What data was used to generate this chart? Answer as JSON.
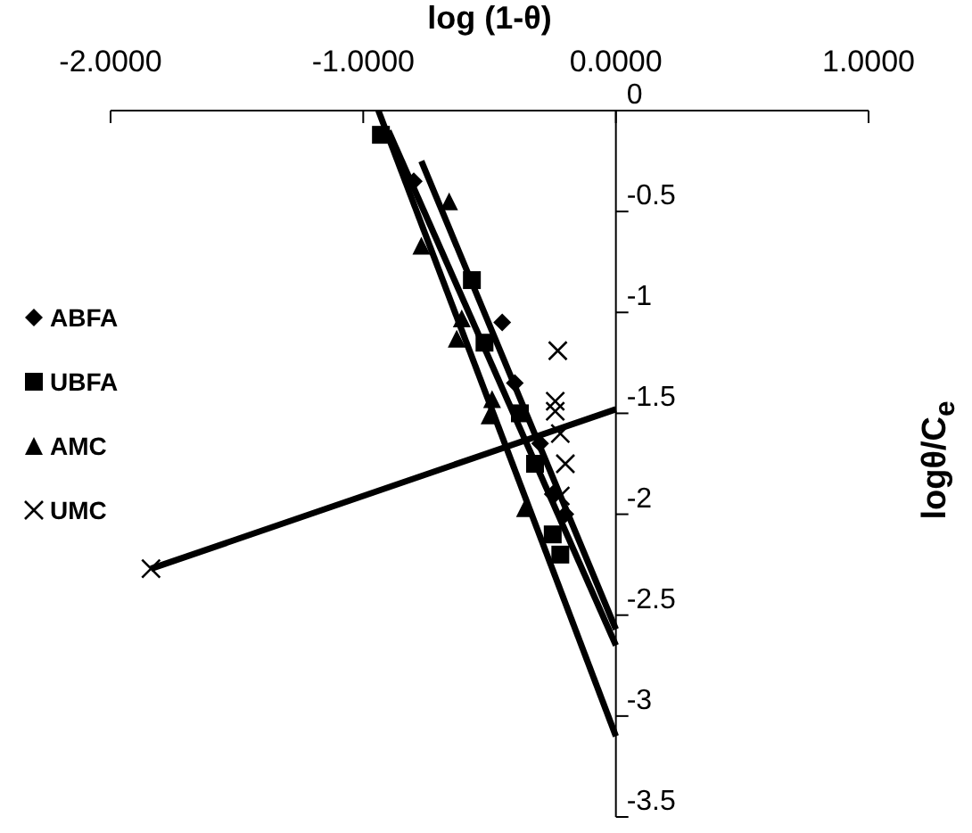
{
  "chart_data": {
    "type": "scatter",
    "xlabel": "log (1-θ)",
    "ylabel": "logθ/C$_{e}$",
    "xlim": [
      -2,
      1
    ],
    "ylim": [
      -3.5,
      0
    ],
    "xticks": [
      {
        "value": -2,
        "label": "-2.0000"
      },
      {
        "value": -1,
        "label": "-1.0000"
      },
      {
        "value": 0,
        "label": "0.0000"
      },
      {
        "value": 1,
        "label": "1.0000"
      }
    ],
    "yticks": [
      0,
      -0.5,
      -1,
      -1.5,
      -2,
      -2.5,
      -3,
      -3.5
    ],
    "legend": "left",
    "series": [
      {
        "name": "ABFA",
        "color": "#000000",
        "marker": "diamond",
        "x": [
          -0.8,
          -0.45,
          -0.4,
          -0.3,
          -0.25,
          -0.2
        ],
        "values": [
          -0.35,
          -1.05,
          -1.35,
          -1.65,
          -1.9,
          -2.0
        ]
      },
      {
        "name": "UBFA",
        "color": "#000000",
        "marker": "square",
        "x": [
          -0.93,
          -0.57,
          -0.52,
          -0.38,
          -0.32,
          -0.25,
          -0.22
        ],
        "values": [
          -0.12,
          -0.84,
          -1.15,
          -1.5,
          -1.75,
          -2.1,
          -2.2
        ]
      },
      {
        "name": "AMC",
        "color": "#000000",
        "marker": "triangle",
        "x": [
          -0.77,
          -0.66,
          -0.61,
          -0.63,
          -0.5,
          -0.49,
          -0.36
        ],
        "values": [
          -0.67,
          -0.45,
          -1.03,
          -1.13,
          -1.51,
          -1.43,
          -1.97
        ]
      },
      {
        "name": "UMC",
        "color": "#000000",
        "marker": "cross",
        "x": [
          -1.84,
          -0.23,
          -0.24,
          -0.24,
          -0.22,
          -0.2,
          -0.22
        ],
        "values": [
          -2.27,
          -1.19,
          -1.49,
          -1.44,
          -1.6,
          -1.75,
          -1.91
        ]
      },
      {
        "type": "line",
        "color": "#000000",
        "marker": "none",
        "x": [
          -0.77,
          0
        ],
        "values": [
          -0.25,
          -2.57
        ]
      },
      {
        "type": "line",
        "color": "#000000",
        "marker": "none",
        "x": [
          -0.9,
          0
        ],
        "values": [
          -0.1,
          -2.65
        ]
      },
      {
        "type": "line",
        "color": "#000000",
        "marker": "none",
        "x": [
          -0.94,
          0
        ],
        "values": [
          0,
          -3.1
        ]
      },
      {
        "type": "line",
        "color": "#000000",
        "marker": "none",
        "x": [
          -1.84,
          0
        ],
        "values": [
          -2.27,
          -1.48
        ]
      }
    ]
  }
}
